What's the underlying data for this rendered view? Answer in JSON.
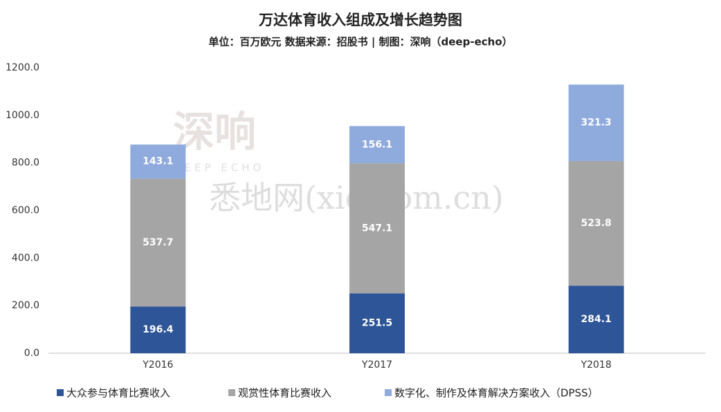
{
  "chart_data": {
    "type": "stacked_bar",
    "title": "万达体育收入组成及增长趋势图",
    "subtitle": "单位：百万欧元 数据来源：招股书 | 制图：深响（deep-echo）",
    "categories": [
      "Y2016",
      "Y2017",
      "Y2018"
    ],
    "series": [
      {
        "name": "大众参与体育比赛收入",
        "color": "#2e5597",
        "values": [
          196.4,
          251.5,
          284.1
        ]
      },
      {
        "name": "观赏性体育比赛收入",
        "color": "#a5a5a5",
        "values": [
          537.7,
          547.1,
          523.8
        ]
      },
      {
        "name": "数字化、制作及体育解决方案收入（DPSS）",
        "color": "#8faadc",
        "values": [
          143.1,
          156.1,
          321.3
        ]
      }
    ],
    "ylim": [
      0,
      1200
    ],
    "yticks": [
      {
        "value": 0,
        "label": "0.0"
      },
      {
        "value": 200,
        "label": "200.0"
      },
      {
        "value": 400,
        "label": "400.0"
      },
      {
        "value": 600,
        "label": "600.0"
      },
      {
        "value": 800,
        "label": "800.0"
      },
      {
        "value": 1000,
        "label": "1000.0"
      },
      {
        "value": 1200,
        "label": "1200.0"
      }
    ],
    "grid": false,
    "legend": "bottom",
    "watermarks": [
      "深响",
      "DEEP ECHO",
      "悉地网(xidicom.cn)"
    ]
  }
}
